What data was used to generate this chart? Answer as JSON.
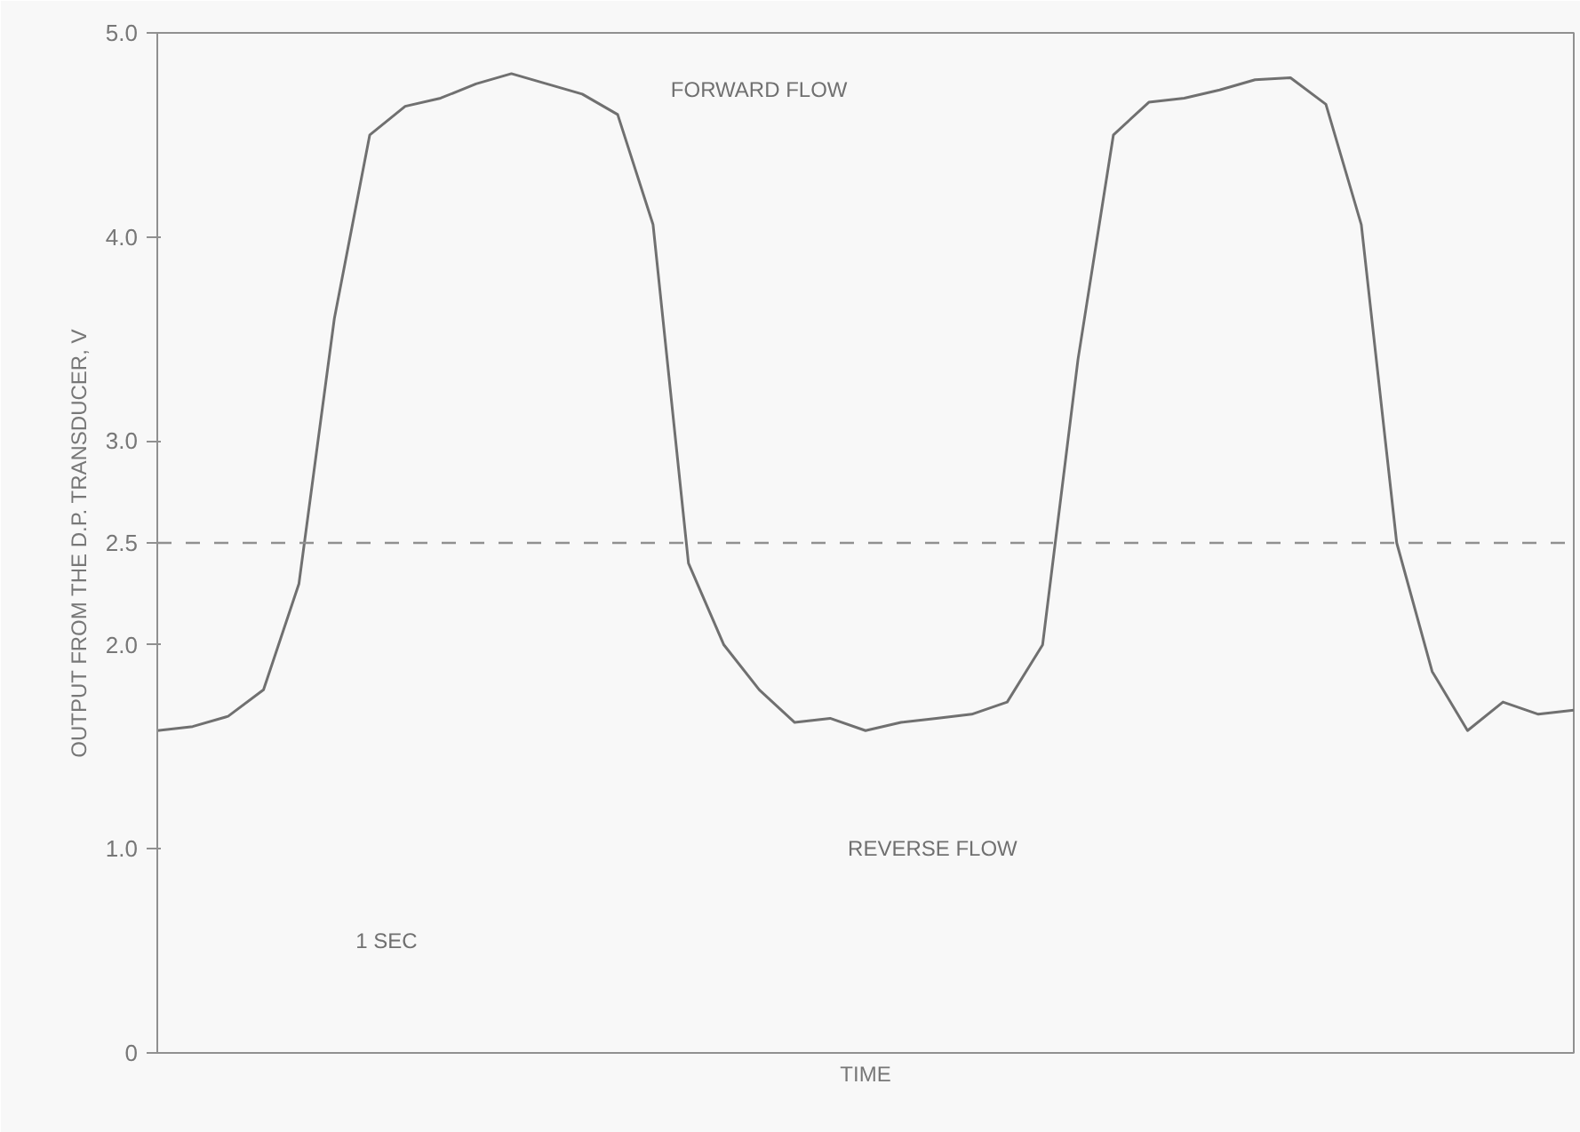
{
  "chart_data": {
    "type": "line",
    "xlabel": "TIME",
    "ylabel": "OUTPUT FROM THE D.P. TRANSDUCER, V",
    "categories": [
      null,
      null,
      null,
      null,
      null,
      null,
      null,
      null,
      null,
      null,
      null,
      null,
      null,
      null,
      null,
      null,
      null,
      null,
      null,
      null,
      null,
      null,
      null,
      null,
      null,
      null,
      null,
      null,
      null,
      null,
      null,
      null,
      null,
      null,
      null,
      null,
      null,
      null,
      null,
      null,
      null
    ],
    "series": [
      {
        "color": "#707070",
        "values": [
          1.58,
          1.6,
          1.65,
          1.78,
          2.3,
          3.6,
          4.5,
          4.64,
          4.68,
          4.75,
          4.8,
          4.75,
          4.7,
          4.6,
          4.06,
          2.4,
          2.0,
          1.78,
          1.62,
          1.64,
          1.58,
          1.62,
          1.64,
          1.66,
          1.72,
          2.0,
          3.4,
          4.5,
          4.66,
          4.68,
          4.72,
          4.77,
          4.78,
          4.65,
          4.06,
          2.5,
          1.87,
          1.58,
          1.72,
          1.66,
          1.68
        ]
      }
    ],
    "ylim": [
      0,
      5
    ],
    "yticks": [
      0,
      {
        "value": 1,
        "label": "1.0"
      },
      {
        "value": 2,
        "label": "2.0"
      },
      2.5,
      {
        "value": 3,
        "label": "3.0"
      },
      {
        "value": 4,
        "label": "4.0"
      },
      {
        "value": 5,
        "label": "5.0"
      }
    ],
    "tick_labels": "y",
    "ref_lines": [
      {
        "axis": "y",
        "value": 2.5,
        "color": "#909090",
        "line_style": "dashed"
      }
    ],
    "annotations": [
      "FORWARD FLOW",
      "REVERSE FLOW",
      "1 SEC"
    ],
    "marker": "none",
    "line_style": "solid",
    "grid": false
  }
}
